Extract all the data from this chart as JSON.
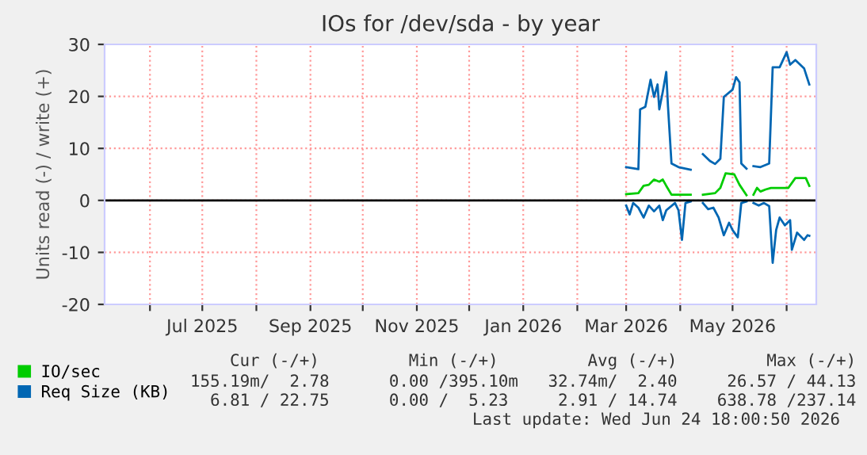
{
  "chart_data": {
    "type": "line",
    "title": "IOs for /dev/sda - by year",
    "ylabel": "Units read (-) / write (+)",
    "xlim": [
      "2025-05-06",
      "2026-06-18"
    ],
    "xticks": [
      {
        "value": "2025-06-01",
        "label": null
      },
      {
        "value": "2025-07-01",
        "label": "Jul 2025"
      },
      {
        "value": "2025-08-01",
        "label": null
      },
      {
        "value": "2025-09-01",
        "label": "Sep 2025"
      },
      {
        "value": "2025-10-01",
        "label": null
      },
      {
        "value": "2025-11-01",
        "label": "Nov 2025"
      },
      {
        "value": "2025-12-01",
        "label": null
      },
      {
        "value": "2026-01-01",
        "label": "Jan 2026"
      },
      {
        "value": "2026-02-01",
        "label": null
      },
      {
        "value": "2026-03-01",
        "label": "Mar 2026"
      },
      {
        "value": "2026-04-01",
        "label": null
      },
      {
        "value": "2026-05-01",
        "label": "May 2026"
      },
      {
        "value": "2026-06-01",
        "label": null
      }
    ],
    "ylim": [
      -20,
      30
    ],
    "yticks": [
      -20,
      -10,
      0,
      10,
      20,
      30
    ],
    "grid": true,
    "legend": "bottom left",
    "marker": "none",
    "line_style": "solid",
    "ref_lines": [
      {
        "axis": "y",
        "value": 0,
        "color": "#000000"
      }
    ],
    "series": [
      {
        "name": "IO/sec",
        "color": "#00cc00",
        "x": [
          "2026-03-01",
          "2026-03-08",
          "2026-03-11",
          "2026-03-14",
          "2026-03-17",
          "2026-03-20",
          "2026-03-22",
          "2026-03-24",
          "2026-03-27",
          "2026-04-07",
          "2026-04-10",
          "2026-04-14",
          "2026-04-21",
          "2026-04-24",
          "2026-04-27",
          "2026-05-02",
          "2026-05-05",
          "2026-05-09",
          "2026-05-11",
          "2026-05-13",
          "2026-05-15",
          "2026-05-17",
          "2026-05-20",
          "2026-05-23",
          "2026-05-26",
          "2026-06-02",
          "2026-06-06",
          "2026-06-12",
          "2026-06-14"
        ],
        "values": [
          1.2,
          1.4,
          2.8,
          3.0,
          4.0,
          3.6,
          4.0,
          2.8,
          1.1,
          1.1,
          null,
          1.1,
          1.4,
          2.4,
          5.2,
          5.0,
          3.0,
          1.0,
          null,
          1.1,
          2.4,
          1.7,
          2.1,
          2.4,
          2.4,
          2.4,
          4.3,
          4.3,
          2.8
        ]
      },
      {
        "name": "Req Size (KB)",
        "color": "#0066b3",
        "x": [
          "2026-03-01",
          "2026-03-08",
          "2026-03-09",
          "2026-03-12",
          "2026-03-15",
          "2026-03-17",
          "2026-03-19",
          "2026-03-20",
          "2026-03-22",
          "2026-03-24",
          "2026-03-25",
          "2026-03-27",
          "2026-03-31",
          "2026-04-07",
          "2026-04-10",
          "2026-04-14",
          "2026-04-18",
          "2026-04-21",
          "2026-04-24",
          "2026-04-26",
          "2026-05-01",
          "2026-05-03",
          "2026-05-05",
          "2026-05-06",
          "2026-05-09",
          "2026-05-11",
          "2026-05-13",
          "2026-05-17",
          "2026-05-22",
          "2026-05-24",
          "2026-05-28",
          "2026-06-01",
          "2026-06-03",
          "2026-06-06",
          "2026-06-11",
          "2026-06-14"
        ],
        "values": [
          6.4,
          6.0,
          17.5,
          18.0,
          23.2,
          19.9,
          22.3,
          17.5,
          20.9,
          24.7,
          18.0,
          7.1,
          6.4,
          5.9,
          null,
          8.9,
          7.6,
          7.0,
          8.0,
          19.9,
          21.3,
          23.7,
          22.7,
          7.1,
          6.1,
          null,
          6.6,
          6.4,
          7.1,
          25.6,
          25.6,
          28.5,
          26.1,
          27.0,
          25.4,
          22.3
        ]
      },
      {
        "color": "#0066b3",
        "x": [
          "2026-03-01",
          "2026-03-03",
          "2026-03-05",
          "2026-03-08",
          "2026-03-11",
          "2026-03-14",
          "2026-03-17",
          "2026-03-20",
          "2026-03-22",
          "2026-03-24",
          "2026-03-29",
          "2026-03-31",
          "2026-04-02",
          "2026-04-04",
          "2026-04-07",
          "2026-04-10",
          "2026-04-14",
          "2026-04-17",
          "2026-04-20",
          "2026-04-23",
          "2026-04-26",
          "2026-04-29",
          "2026-05-01",
          "2026-05-04",
          "2026-05-06",
          "2026-05-09",
          "2026-05-11",
          "2026-05-13",
          "2026-05-16",
          "2026-05-19",
          "2026-05-22",
          "2026-05-24",
          "2026-05-26",
          "2026-05-28",
          "2026-05-31",
          "2026-06-03",
          "2026-06-04",
          "2026-06-07",
          "2026-06-11",
          "2026-06-13",
          "2026-06-14"
        ],
        "values": [
          -1.0,
          -2.7,
          -0.5,
          -1.4,
          -3.3,
          -1.0,
          -2.1,
          -1.0,
          -3.8,
          -1.9,
          -0.5,
          -1.9,
          -7.6,
          -0.5,
          -0.2,
          null,
          -0.5,
          -1.7,
          -1.4,
          -3.3,
          -6.7,
          -4.3,
          -5.7,
          -7.1,
          -0.5,
          -0.2,
          null,
          -0.5,
          -1.0,
          -0.5,
          -1.1,
          -12.0,
          -5.7,
          -3.3,
          -4.8,
          -3.8,
          -9.5,
          -6.2,
          -7.6,
          -6.7,
          -6.8
        ]
      }
    ],
    "annotations": [
      "Cur (-/+)         Min (-/+)         Avg (-/+)         Max (-/+)",
      "155.19m/  2.78      0.00 /395.10m   32.74m/  2.40     26.57 / 44.13",
      "  6.81 / 22.75      0.00 /  5.23     2.91 / 14.74    638.78 /237.14",
      "Last update: Wed Jun 24 18:00:50 2026"
    ]
  }
}
